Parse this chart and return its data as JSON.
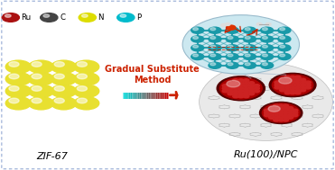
{
  "bg": "#ffffff",
  "border_color": "#aabbdd",
  "legend_items": [
    {
      "label": "Ru",
      "color": "#aa1111"
    },
    {
      "label": "C",
      "color": "#444444"
    },
    {
      "label": "N",
      "color": "#dddd00"
    },
    {
      "label": "P",
      "color": "#00bbcc"
    }
  ],
  "arrow_color": "#cc2200",
  "arrow_label": "Gradual Substitute\nMethod",
  "arrow_label_color": "#cc2200",
  "zif67_label": "ZIF-67",
  "product_label": "Ru(100)/NPC",
  "yellow": "#e8e030",
  "gold_line": "#c8a020",
  "teal": "#20a8b0",
  "white_bg": "#ffffff",
  "gray_sheet": "#cccccc",
  "ru_dark": "#550000",
  "ru_mid": "#aa0000",
  "ru_bright": "#cc2222",
  "inset_bg": "#cce8f0",
  "teal2": "#1899a8"
}
